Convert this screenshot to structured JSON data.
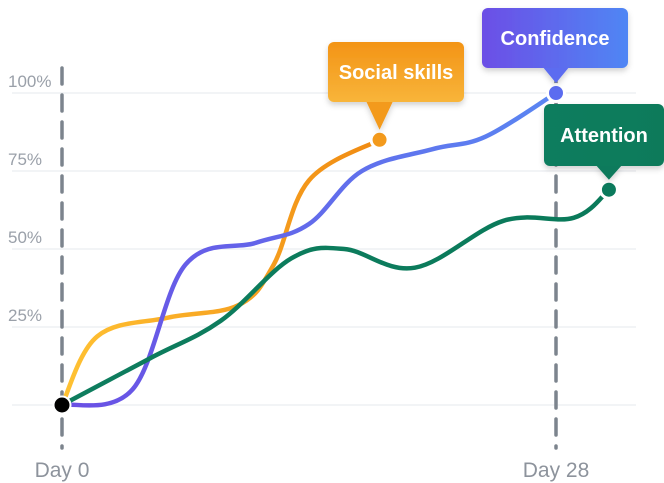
{
  "chart_data": {
    "type": "line",
    "x_labels": [
      "Day 0",
      "Day 28"
    ],
    "y_ticks": [
      "25%",
      "50%",
      "75%",
      "100%"
    ],
    "ylim": [
      0,
      100
    ],
    "grid": true,
    "series": [
      {
        "name": "Social skills",
        "color": "#f39a1c",
        "points": [
          [
            0,
            0
          ],
          [
            2,
            22
          ],
          [
            6,
            28
          ],
          [
            10,
            32
          ],
          [
            12,
            45
          ],
          [
            14,
            72
          ],
          [
            18,
            85
          ]
        ]
      },
      {
        "name": "Confidence",
        "color": "#5b6cf0",
        "points": [
          [
            0,
            0
          ],
          [
            4,
            5
          ],
          [
            7,
            45
          ],
          [
            11,
            52
          ],
          [
            14,
            58
          ],
          [
            17,
            75
          ],
          [
            21,
            82
          ],
          [
            24,
            86
          ],
          [
            28,
            100
          ]
        ]
      },
      {
        "name": "Attention",
        "color": "#0b7a5c",
        "points": [
          [
            0,
            0
          ],
          [
            5,
            15
          ],
          [
            9,
            27
          ],
          [
            13,
            47
          ],
          [
            16,
            50
          ],
          [
            20,
            44
          ],
          [
            25,
            59
          ],
          [
            29,
            60
          ],
          [
            31,
            69
          ]
        ]
      }
    ]
  }
}
